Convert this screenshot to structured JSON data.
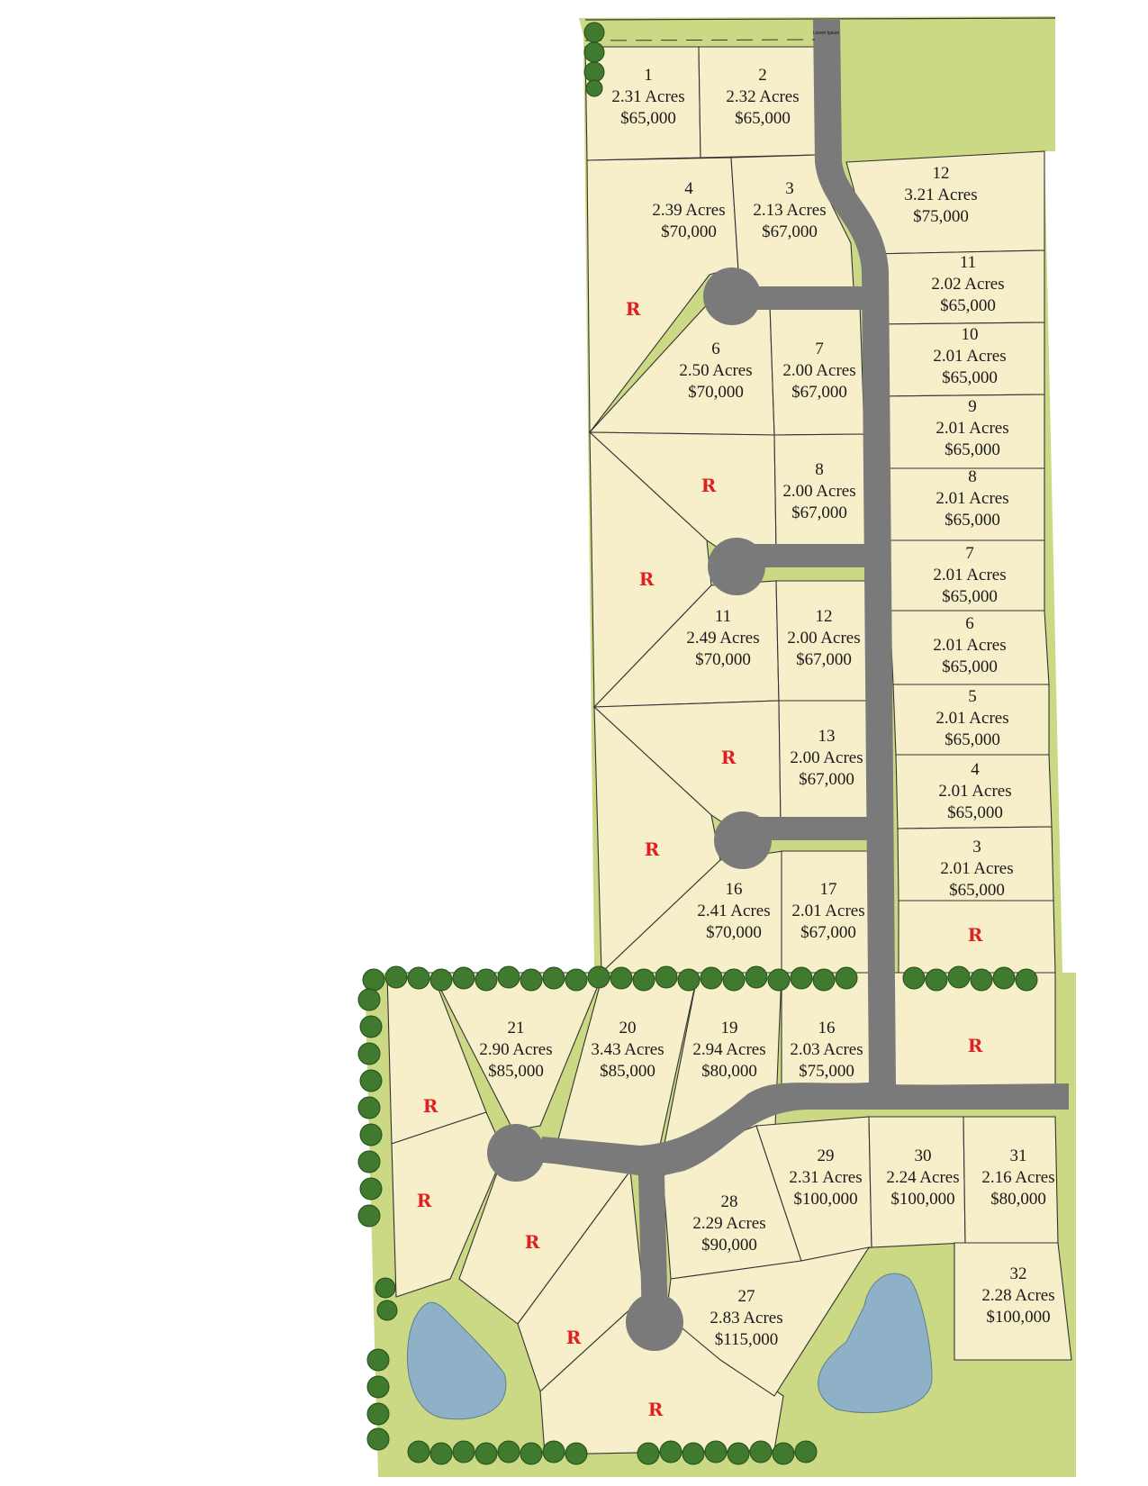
{
  "road_label": "Lorem Ipsum",
  "colors": {
    "lot_fill": "#f6efca",
    "green_fill": "#ccd984",
    "road": "#7a7a7a",
    "pond": "#8fb1c7",
    "tree": "#3f7a2e",
    "reserved_mark": "#e02020"
  },
  "reserved_symbol": "R",
  "lots": [
    {
      "id": "lot-1",
      "number": "1",
      "acres": "2.31 Acres",
      "price": "$65,000"
    },
    {
      "id": "lot-2",
      "number": "2",
      "acres": "2.32 Acres",
      "price": "$65,000"
    },
    {
      "id": "lot-4a",
      "number": "4",
      "acres": "2.39 Acres",
      "price": "$70,000"
    },
    {
      "id": "lot-3a",
      "number": "3",
      "acres": "2.13 Acres",
      "price": "$67,000"
    },
    {
      "id": "lot-12a",
      "number": "12",
      "acres": "3.21 Acres",
      "price": "$75,000"
    },
    {
      "id": "lot-11a",
      "number": "11",
      "acres": "2.02 Acres",
      "price": "$65,000"
    },
    {
      "id": "lot-6a",
      "number": "6",
      "acres": "2.50 Acres",
      "price": "$70,000"
    },
    {
      "id": "lot-7a",
      "number": "7",
      "acres": "2.00 Acres",
      "price": "$67,000"
    },
    {
      "id": "lot-10",
      "number": "10",
      "acres": "2.01 Acres",
      "price": "$65,000"
    },
    {
      "id": "lot-9",
      "number": "9",
      "acres": "2.01 Acres",
      "price": "$65,000"
    },
    {
      "id": "lot-8a",
      "number": "8",
      "acres": "2.00 Acres",
      "price": "$67,000"
    },
    {
      "id": "lot-8b",
      "number": "8",
      "acres": "2.01 Acres",
      "price": "$65,000"
    },
    {
      "id": "lot-7b",
      "number": "7",
      "acres": "2.01 Acres",
      "price": "$65,000"
    },
    {
      "id": "lot-11b",
      "number": "11",
      "acres": "2.49 Acres",
      "price": "$70,000"
    },
    {
      "id": "lot-12b",
      "number": "12",
      "acres": "2.00 Acres",
      "price": "$67,000"
    },
    {
      "id": "lot-6b",
      "number": "6",
      "acres": "2.01 Acres",
      "price": "$65,000"
    },
    {
      "id": "lot-5",
      "number": "5",
      "acres": "2.01 Acres",
      "price": "$65,000"
    },
    {
      "id": "lot-13",
      "number": "13",
      "acres": "2.00 Acres",
      "price": "$67,000"
    },
    {
      "id": "lot-4b",
      "number": "4",
      "acres": "2.01 Acres",
      "price": "$65,000"
    },
    {
      "id": "lot-3b",
      "number": "3",
      "acres": "2.01 Acres",
      "price": "$65,000"
    },
    {
      "id": "lot-16a",
      "number": "16",
      "acres": "2.41 Acres",
      "price": "$70,000"
    },
    {
      "id": "lot-17",
      "number": "17",
      "acres": "2.01 Acres",
      "price": "$67,000"
    },
    {
      "id": "lot-21",
      "number": "21",
      "acres": "2.90 Acres",
      "price": "$85,000"
    },
    {
      "id": "lot-20",
      "number": "20",
      "acres": "3.43 Acres",
      "price": "$85,000"
    },
    {
      "id": "lot-19",
      "number": "19",
      "acres": "2.94 Acres",
      "price": "$80,000"
    },
    {
      "id": "lot-16b",
      "number": "16",
      "acres": "2.03 Acres",
      "price": "$75,000"
    },
    {
      "id": "lot-29",
      "number": "29",
      "acres": "2.31 Acres",
      "price": "$100,000"
    },
    {
      "id": "lot-30",
      "number": "30",
      "acres": "2.24 Acres",
      "price": "$100,000"
    },
    {
      "id": "lot-31",
      "number": "31",
      "acres": "2.16 Acres",
      "price": "$80,000"
    },
    {
      "id": "lot-28",
      "number": "28",
      "acres": "2.29 Acres",
      "price": "$90,000"
    },
    {
      "id": "lot-27",
      "number": "27",
      "acres": "2.83 Acres",
      "price": "$115,000"
    },
    {
      "id": "lot-32",
      "number": "32",
      "acres": "2.28 Acres",
      "price": "$100,000"
    }
  ]
}
